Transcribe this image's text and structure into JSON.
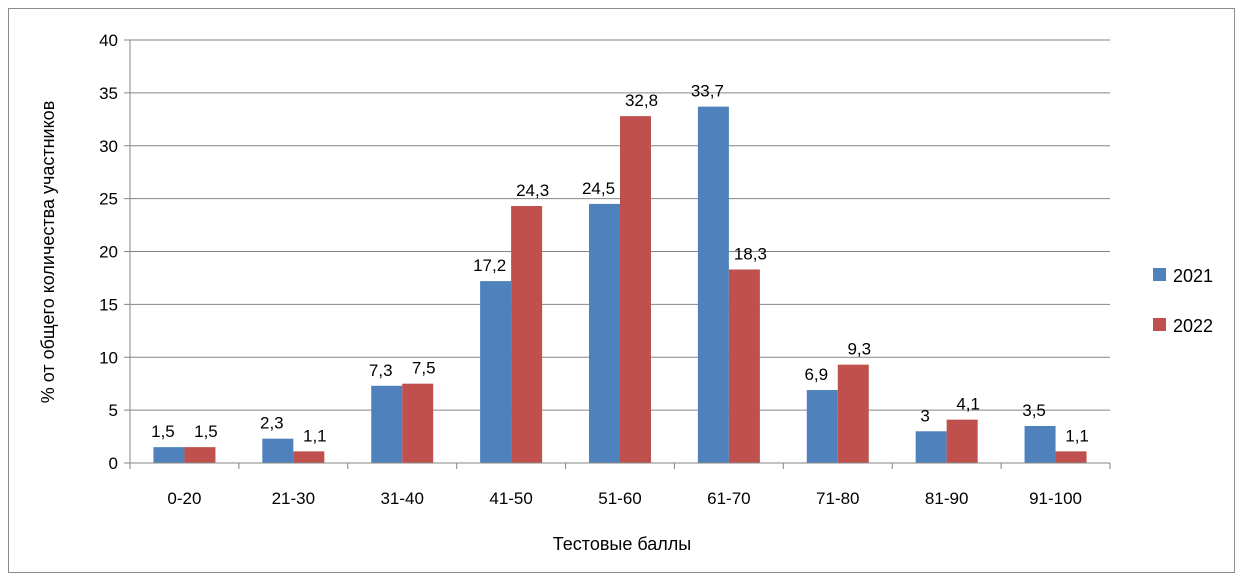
{
  "chart_data": {
    "type": "bar",
    "title": "",
    "xlabel": "Тестовые баллы",
    "ylabel": "% от общего количества участников",
    "categories": [
      "0-20",
      "21-30",
      "31-40",
      "41-50",
      "51-60",
      "61-70",
      "71-80",
      "81-90",
      "91-100"
    ],
    "series": [
      {
        "name": "2021",
        "color": "#4f81bd",
        "values": [
          1.5,
          2.3,
          7.3,
          17.2,
          24.5,
          33.7,
          6.9,
          3,
          3.5
        ],
        "labels": [
          "1,5",
          "2,3",
          "7,3",
          "17,2",
          "24,5",
          "33,7",
          "6,9",
          "3",
          "3,5"
        ]
      },
      {
        "name": "2022",
        "color": "#c0504d",
        "values": [
          1.5,
          1.1,
          7.5,
          24.3,
          32.8,
          18.3,
          9.3,
          4.1,
          1.1
        ],
        "labels": [
          "1,5",
          "1,1",
          "7,5",
          "24,3",
          "32,8",
          "18,3",
          "9,3",
          "4,1",
          "1,1"
        ]
      }
    ],
    "ylim": [
      0,
      40
    ],
    "yticks": [
      0,
      5,
      10,
      15,
      20,
      25,
      30,
      35,
      40
    ],
    "grid": true,
    "legend": "right"
  }
}
